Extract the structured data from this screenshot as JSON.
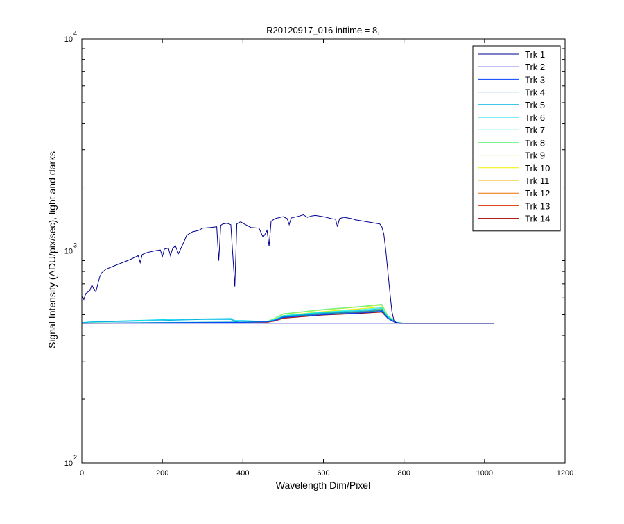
{
  "chart_data": {
    "type": "line",
    "title": "R20120917_016 inttime = 8,",
    "xlabel": "Wavelength Dim/Pixel",
    "ylabel": "Signal Intensity (ADU/pix/sec), light and darks",
    "xlim": [
      0,
      1200
    ],
    "ylim": [
      100,
      10000
    ],
    "yscale": "log",
    "grid": false,
    "legend_position": "top-right",
    "x_ticks": [
      0,
      200,
      400,
      600,
      800,
      1000,
      1200
    ],
    "x_tick_labels": [
      "0",
      "200",
      "400",
      "600",
      "800",
      "1000",
      "1200"
    ],
    "y_ticks": [
      100,
      1000,
      10000
    ],
    "y_tick_labels": [
      {
        "base": "10",
        "exp": "2"
      },
      {
        "base": "10",
        "exp": "3"
      },
      {
        "base": "10",
        "exp": "4"
      }
    ],
    "series": [
      {
        "name": "Trk 1",
        "color": "#00008f",
        "x": [
          0,
          5,
          10,
          20,
          25,
          30,
          35,
          40,
          45,
          50,
          60,
          80,
          100,
          120,
          140,
          145,
          150,
          155,
          160,
          180,
          195,
          200,
          205,
          215,
          220,
          225,
          232,
          240,
          255,
          260,
          265,
          275,
          290,
          300,
          320,
          335,
          340,
          345,
          350,
          360,
          370,
          380,
          385,
          390,
          395,
          400,
          410,
          420,
          440,
          450,
          455,
          460,
          465,
          470,
          480,
          500,
          510,
          515,
          520,
          540,
          550,
          560,
          570,
          580,
          600,
          620,
          630,
          635,
          640,
          650,
          660,
          670,
          680,
          690,
          700,
          710,
          720,
          730,
          740,
          745,
          750,
          755,
          760,
          765,
          770,
          775,
          780,
          790,
          800,
          850,
          900,
          950,
          1000,
          1024
        ],
        "y": [
          610,
          590,
          630,
          650,
          690,
          660,
          640,
          700,
          760,
          790,
          820,
          850,
          880,
          910,
          950,
          880,
          960,
          970,
          980,
          1000,
          1010,
          940,
          1020,
          1030,
          950,
          1020,
          1060,
          970,
          1120,
          1180,
          1200,
          1230,
          1250,
          1280,
          1290,
          1300,
          900,
          1320,
          1340,
          1350,
          1330,
          680,
          1340,
          1360,
          1370,
          1350,
          1320,
          1290,
          1280,
          1160,
          1200,
          1250,
          1050,
          1380,
          1420,
          1450,
          1420,
          1330,
          1430,
          1460,
          1480,
          1440,
          1460,
          1470,
          1450,
          1420,
          1410,
          1300,
          1420,
          1440,
          1430,
          1420,
          1400,
          1390,
          1380,
          1370,
          1360,
          1350,
          1340,
          1300,
          1200,
          1000,
          800,
          640,
          520,
          470,
          460,
          455,
          455,
          455,
          455,
          455,
          455,
          455
        ]
      },
      {
        "name": "Trk 2",
        "color": "#0000c8",
        "x": [
          0,
          200,
          400,
          460,
          500,
          600,
          700,
          730,
          745,
          760,
          780,
          800,
          1024
        ],
        "y": [
          456,
          456,
          456,
          456,
          456,
          456,
          456,
          456,
          456,
          456,
          456,
          456,
          456
        ]
      },
      {
        "name": "Trk 3",
        "color": "#0040ff",
        "x": [
          0,
          200,
          400,
          460,
          480,
          500,
          600,
          700,
          730,
          745,
          760,
          780,
          800,
          1024
        ],
        "y": [
          456,
          458,
          460,
          462,
          470,
          485,
          500,
          510,
          515,
          520,
          480,
          458,
          456,
          456
        ]
      },
      {
        "name": "Trk 4",
        "color": "#0080c0",
        "x": [
          0,
          200,
          400,
          460,
          480,
          500,
          600,
          700,
          730,
          745,
          760,
          780,
          800,
          1024
        ],
        "y": [
          456,
          459,
          462,
          464,
          472,
          488,
          505,
          515,
          520,
          525,
          482,
          458,
          456,
          456
        ]
      },
      {
        "name": "Trk 5",
        "color": "#00b0e0",
        "x": [
          0,
          20,
          100,
          200,
          300,
          370,
          380,
          400,
          460,
          480,
          500,
          600,
          700,
          745,
          760,
          780,
          800,
          1024
        ],
        "y": [
          458,
          462,
          465,
          470,
          475,
          475,
          465,
          468,
          462,
          472,
          490,
          508,
          520,
          528,
          485,
          460,
          456,
          456
        ]
      },
      {
        "name": "Trk 6",
        "color": "#00d8f0",
        "x": [
          0,
          20,
          100,
          200,
          300,
          370,
          380,
          400,
          460,
          480,
          500,
          600,
          700,
          745,
          760,
          780,
          800,
          1024
        ],
        "y": [
          459,
          463,
          468,
          474,
          478,
          480,
          470,
          470,
          465,
          475,
          493,
          512,
          525,
          535,
          488,
          460,
          456,
          456
        ]
      },
      {
        "name": "Trk 7",
        "color": "#40f0e0",
        "x": [
          0,
          200,
          400,
          460,
          480,
          500,
          600,
          700,
          745,
          760,
          780,
          800,
          1024
        ],
        "y": [
          457,
          460,
          463,
          465,
          476,
          495,
          515,
          530,
          540,
          490,
          460,
          456,
          456
        ]
      },
      {
        "name": "Trk 8",
        "color": "#70f080",
        "x": [
          0,
          200,
          400,
          460,
          480,
          500,
          600,
          700,
          745,
          760,
          780,
          800,
          1024
        ],
        "y": [
          457,
          459,
          462,
          465,
          482,
          505,
          530,
          548,
          560,
          495,
          462,
          456,
          456
        ]
      },
      {
        "name": "Trk 9",
        "color": "#b0f040",
        "x": [
          0,
          200,
          400,
          460,
          480,
          500,
          600,
          700,
          745,
          760,
          780,
          800,
          1024
        ],
        "y": [
          457,
          459,
          462,
          465,
          480,
          502,
          527,
          545,
          555,
          493,
          461,
          456,
          456
        ]
      },
      {
        "name": "Trk 10",
        "color": "#f0f000",
        "x": [
          0,
          200,
          400,
          460,
          480,
          500,
          600,
          700,
          745,
          760,
          780,
          800,
          1024
        ],
        "y": [
          456,
          458,
          461,
          463,
          475,
          495,
          518,
          535,
          545,
          490,
          460,
          456,
          456
        ]
      },
      {
        "name": "Trk 11",
        "color": "#f0b000",
        "x": [
          0,
          200,
          400,
          460,
          480,
          500,
          600,
          700,
          745,
          760,
          780,
          800,
          1024
        ],
        "y": [
          456,
          458,
          460,
          462,
          472,
          490,
          510,
          525,
          532,
          487,
          459,
          456,
          456
        ]
      },
      {
        "name": "Trk 12",
        "color": "#f07000",
        "x": [
          0,
          200,
          400,
          460,
          480,
          500,
          600,
          700,
          745,
          760,
          780,
          800,
          1024
        ],
        "y": [
          456,
          457,
          459,
          461,
          470,
          486,
          505,
          518,
          524,
          484,
          458,
          456,
          456
        ]
      },
      {
        "name": "Trk 13",
        "color": "#e03000",
        "x": [
          0,
          200,
          400,
          460,
          480,
          500,
          600,
          700,
          745,
          760,
          780,
          800,
          1024
        ],
        "y": [
          456,
          457,
          459,
          460,
          468,
          483,
          501,
          512,
          518,
          482,
          458,
          456,
          456
        ]
      },
      {
        "name": "Trk 14",
        "color": "#a00000",
        "x": [
          0,
          200,
          400,
          460,
          480,
          500,
          600,
          700,
          745,
          760,
          780,
          800,
          1024
        ],
        "y": [
          456,
          457,
          458,
          460,
          467,
          481,
          498,
          508,
          514,
          480,
          457,
          456,
          456
        ]
      }
    ]
  }
}
